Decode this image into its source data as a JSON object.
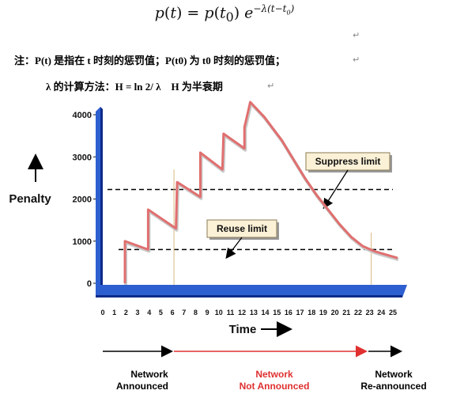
{
  "formula": {
    "lhs": "p(t) = p(t",
    "lhs_sub": "0",
    "rhs_prefix": ") e",
    "exponent": "−λ(t−t0)"
  },
  "notes": {
    "line1": "注：P(t) 是指在 t 时刻的惩罚值；P(t0) 为 t0 时刻的惩罚值；",
    "line2": "λ 的计算方法：H = ln 2/ λ　H 为半衰期"
  },
  "pilcrow": "↵",
  "chart_data": {
    "type": "line",
    "ylabel": "Penalty",
    "xlabel": "Time",
    "xlim": [
      0,
      25
    ],
    "ylim": [
      0,
      4000
    ],
    "x_ticks": [
      0,
      1,
      2,
      3,
      4,
      5,
      6,
      7,
      8,
      9,
      10,
      11,
      12,
      13,
      14,
      15,
      16,
      17,
      18,
      19,
      20,
      21,
      22,
      23,
      24,
      25
    ],
    "y_ticks": [
      0,
      1000,
      2000,
      3000,
      4000
    ],
    "series": [
      {
        "color": "#e06f6f",
        "points": [
          [
            1.5,
            0
          ],
          [
            1.5,
            1000
          ],
          [
            3.5,
            800
          ],
          [
            3.5,
            1750
          ],
          [
            5.9,
            1300
          ],
          [
            6,
            2400
          ],
          [
            8,
            2050
          ],
          [
            8,
            3100
          ],
          [
            9.9,
            2700
          ],
          [
            10,
            3550
          ],
          [
            11.8,
            3200
          ],
          [
            11.8,
            3700
          ],
          [
            12.3,
            4300
          ],
          [
            13.5,
            3950
          ],
          [
            15,
            3400
          ],
          [
            16,
            2950
          ],
          [
            17,
            2500
          ],
          [
            18,
            2100
          ],
          [
            19,
            1750
          ],
          [
            20,
            1400
          ],
          [
            21,
            1100
          ],
          [
            22,
            880
          ],
          [
            23,
            760
          ],
          [
            24,
            680
          ],
          [
            25,
            600
          ]
        ]
      }
    ],
    "thresholds": {
      "suppress": {
        "label": "Suppress limit",
        "value": 2000
      },
      "reuse": {
        "label": "Reuse limit",
        "value": 800
      }
    },
    "events": [
      {
        "x": 6,
        "label_line1": "Network",
        "label_line2": "Announced",
        "color": "#000000"
      },
      {
        "x": 14.5,
        "label_line1": "Network",
        "label_line2": "Not Announced",
        "color": "#e03030"
      },
      {
        "x": 25.7,
        "label_line1": "Network",
        "label_line2": "Re-announced",
        "color": "#000000"
      }
    ],
    "colors": {
      "axis_face": "#2d5fd0",
      "axis_dark": "#0d2a8a",
      "curve": "#e06f6f",
      "arrow_red": "#e03030",
      "label_box": "#fbf1d6"
    }
  }
}
